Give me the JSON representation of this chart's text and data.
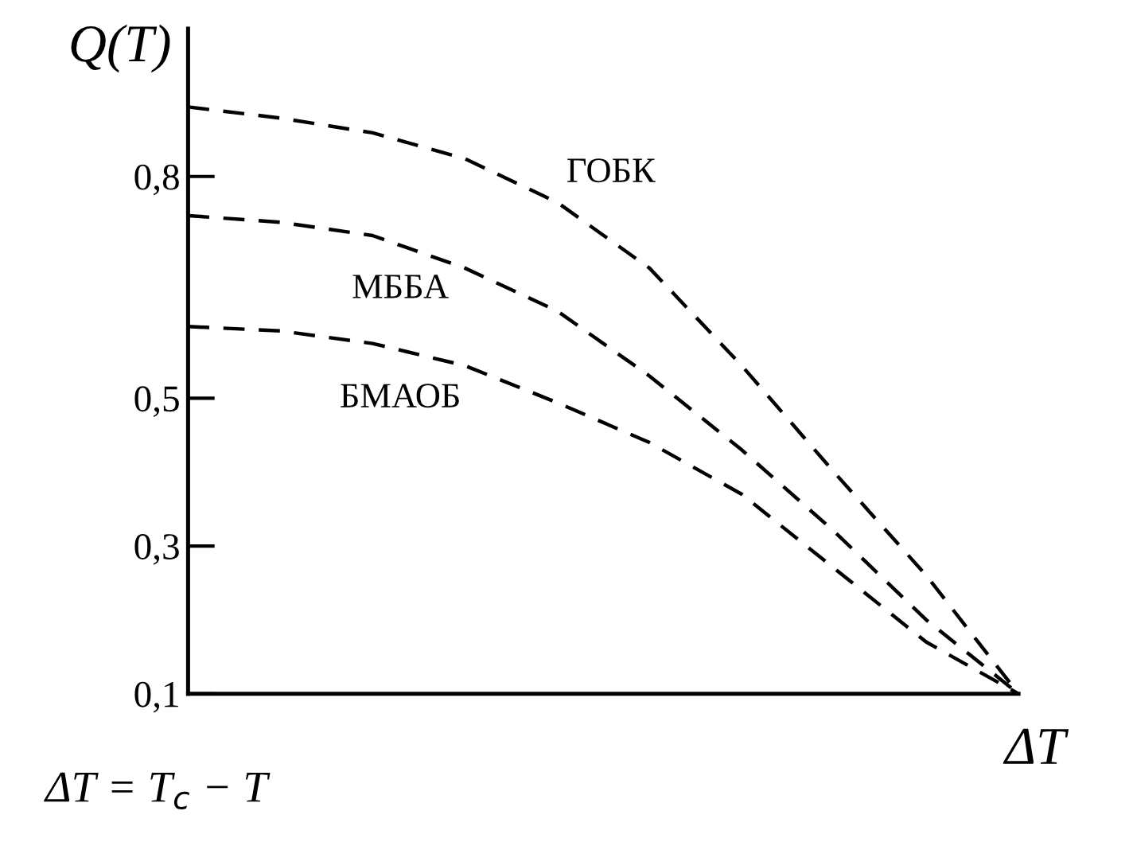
{
  "chart_data": {
    "type": "line",
    "ylabel": "Q(T)",
    "xlabel": "ΔT",
    "annotations": [
      "ΔT = T$_{c}$ − T"
    ],
    "categories": [
      null,
      null,
      null,
      null,
      null,
      null,
      null,
      null,
      null,
      null
    ],
    "series": [
      {
        "name": "ГОБК",
        "color": "#000000",
        "values": [
          0.894,
          0.879,
          0.859,
          0.824,
          0.765,
          0.676,
          0.544,
          0.4,
          0.26,
          0.1
        ]
      },
      {
        "name": "МББА",
        "color": "#000000",
        "values": [
          0.747,
          0.738,
          0.72,
          0.676,
          0.618,
          0.53,
          0.43,
          0.32,
          0.2,
          0.1
        ]
      },
      {
        "name": "БМАОБ",
        "color": "#000000",
        "values": [
          0.597,
          0.591,
          0.574,
          0.544,
          0.494,
          0.44,
          0.37,
          0.27,
          0.17,
          0.1
        ]
      }
    ],
    "ylim": [
      0.1,
      1.0
    ],
    "yticks": [
      {
        "value": 0.1,
        "label": "0,1"
      },
      {
        "value": 0.3,
        "label": "0,3"
      },
      {
        "value": 0.5,
        "label": "0,5"
      },
      {
        "value": 0.8,
        "label": "0,8"
      }
    ],
    "tick_labels": "y",
    "line_style": "dashed",
    "marker": "none",
    "grid": false,
    "legend": false
  }
}
